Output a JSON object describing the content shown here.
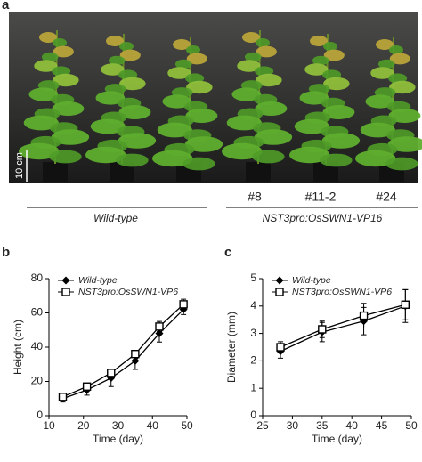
{
  "figure": {
    "panel_labels": [
      "a",
      "b",
      "c"
    ],
    "scale_bar": "10 cm",
    "line_labels": [
      "#8",
      "#11-2",
      "#24"
    ],
    "groups": [
      "Wild-type",
      "NST3pro:OsSWN1-VP16"
    ]
  },
  "chart_data": [
    {
      "type": "line",
      "xlabel": "Time (day)",
      "ylabel": "Height (cm)",
      "x": [
        14,
        21,
        28,
        35,
        42,
        49
      ],
      "xlim": [
        10,
        50
      ],
      "xticks": [
        10,
        20,
        30,
        40,
        50
      ],
      "ylim": [
        0,
        80
      ],
      "yticks": [
        0,
        20,
        40,
        60,
        80
      ],
      "legend": "upper left",
      "series": [
        {
          "name": "Wild-type",
          "color": "#000000",
          "marker": "diamond",
          "values": [
            10,
            15,
            22,
            32,
            48,
            62
          ],
          "errors": [
            2,
            3,
            5,
            5,
            5,
            3
          ]
        },
        {
          "name": "NST3pro:OsSWN1-VP6",
          "color": "#000000",
          "marker": "square",
          "values": [
            11,
            17,
            25,
            36,
            52,
            65
          ],
          "errors": [
            2,
            2,
            2,
            2,
            3,
            3
          ]
        }
      ]
    },
    {
      "type": "line",
      "xlabel": "Time (day)",
      "ylabel": "Diameter (mm)",
      "x": [
        28,
        35,
        42,
        49
      ],
      "xlim": [
        25,
        50
      ],
      "xticks": [
        25,
        30,
        35,
        40,
        45,
        50
      ],
      "ylim": [
        0,
        5
      ],
      "yticks": [
        0,
        1,
        2,
        3,
        4,
        5
      ],
      "legend": "upper left",
      "series": [
        {
          "name": "Wild-type",
          "color": "#000000",
          "marker": "diamond",
          "values": [
            2.35,
            3.05,
            3.45,
            4.0
          ],
          "errors": [
            0.25,
            0.35,
            0.5,
            0.6
          ]
        },
        {
          "name": "NST3pro:OsSWN1-VP6",
          "color": "#000000",
          "marker": "square",
          "values": [
            2.5,
            3.15,
            3.65,
            4.05
          ],
          "errors": [
            0.2,
            0.3,
            0.45,
            0.55
          ]
        }
      ]
    }
  ]
}
